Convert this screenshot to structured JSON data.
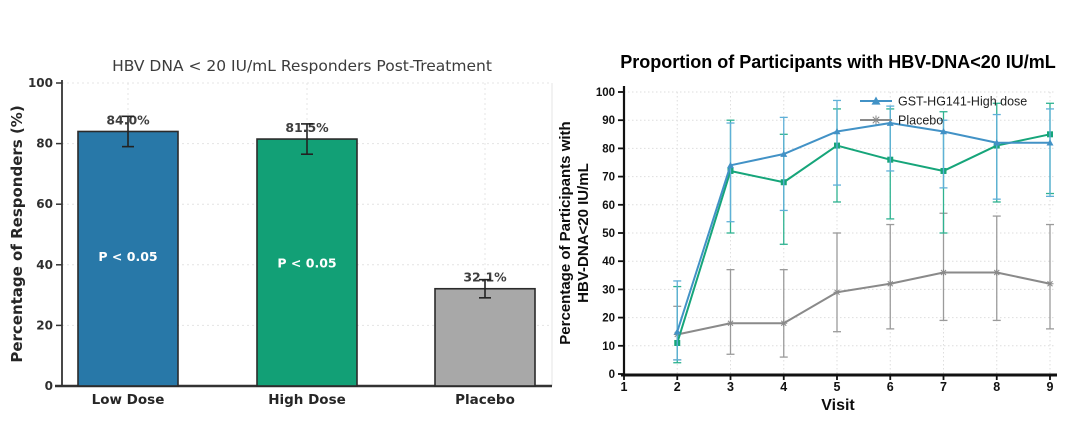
{
  "page": {
    "background": "#ffffff"
  },
  "chart_data": [
    {
      "id": "responders-bar-chart",
      "type": "bar",
      "title": "HBV DNA < 20 IU/mL Responders Post-Treatment",
      "ylabel": "Percentage of Responders (%)",
      "xlabel": "",
      "categories": [
        "Low Dose",
        "High Dose",
        "Placebo"
      ],
      "values": [
        84.0,
        81.5,
        32.1
      ],
      "value_labels": [
        "84.0%",
        "81.5%",
        "32.1%"
      ],
      "error": [
        5,
        5,
        3
      ],
      "annotations": [
        "P < 0.05",
        "P < 0.05",
        ""
      ],
      "bar_colors": [
        "#2878a8",
        "#12a076",
        "#a8a8a8"
      ],
      "bar_edge_color": "#2b2b2b",
      "error_color": "#222222",
      "grid_color": "#e4e4e4",
      "ylim": [
        0,
        100
      ],
      "yticks": [
        0,
        20,
        40,
        60,
        80,
        100
      ],
      "grid": true,
      "legend": null
    },
    {
      "id": "proportion-line-chart",
      "type": "line",
      "title": "Proportion of Participants with HBV-DNA<20 IU/mL",
      "xlabel": "Visit",
      "ylabel_lines": [
        "Percentage of Participants with",
        "HBV-DNA<20 IU/mL"
      ],
      "xlim": [
        1,
        9
      ],
      "xticks": [
        1,
        2,
        3,
        4,
        5,
        6,
        7,
        8,
        9
      ],
      "ylim": [
        0,
        100
      ],
      "yticks": [
        0,
        10,
        20,
        30,
        40,
        50,
        60,
        70,
        80,
        90,
        100
      ],
      "x": [
        2,
        3,
        4,
        5,
        6,
        7,
        8,
        9
      ],
      "grid": true,
      "grid_color": "#dedede",
      "series": [
        {
          "label": "GST-HG141-High dose",
          "color": "#4292c6",
          "error_color": "#5fb0d8",
          "marker": "triangle",
          "values": [
            15,
            74,
            78,
            86,
            89,
            86,
            82,
            82
          ],
          "err_low": [
            5,
            54,
            58,
            67,
            72,
            66,
            62,
            63
          ],
          "err_high": [
            33,
            89,
            91,
            97,
            95,
            90,
            92,
            94
          ]
        },
        {
          "label": "",
          "color": "#16a57a",
          "error_color": "#2eb290",
          "marker": "square",
          "values": [
            11,
            72,
            68,
            81,
            76,
            72,
            81,
            85
          ],
          "err_low": [
            4,
            50,
            46,
            61,
            55,
            50,
            61,
            64
          ],
          "err_high": [
            31,
            90,
            85,
            94,
            94,
            93,
            96,
            96
          ]
        },
        {
          "label": "Placebo",
          "color": "#8a8a8a",
          "error_color": "#9b9b9b",
          "marker": "star",
          "values": [
            14,
            18,
            18,
            29,
            32,
            36,
            36,
            32
          ],
          "err_low": [
            5,
            7,
            6,
            15,
            16,
            19,
            19,
            16
          ],
          "err_high": [
            24,
            37,
            37,
            50,
            53,
            57,
            56,
            53
          ]
        }
      ],
      "legend": {
        "location": "upper right",
        "series_indexes": [
          0,
          2
        ]
      }
    }
  ]
}
